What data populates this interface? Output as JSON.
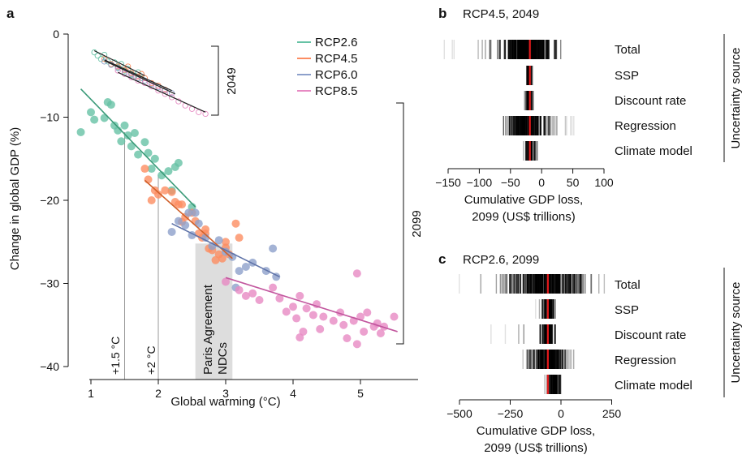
{
  "colors": {
    "RCP2.6": "#66c2a5",
    "RCP4.5": "#fc8d62",
    "RCP6.0": "#8da0cb",
    "RCP8.5": "#e78ac3",
    "median": "#e41a1c",
    "nd_band": "#dddddd"
  },
  "panel_a": {
    "label": "a",
    "xlabel": "Global warming (°C)",
    "ylabel": "Change in global GDP (%)",
    "xticks": [
      "1",
      "2",
      "3",
      "4",
      "5"
    ],
    "yticks": [
      "0",
      "−10",
      "−20",
      "−30",
      "−40"
    ],
    "legend": [
      "RCP2.6",
      "RCP4.5",
      "RCP6.0",
      "RCP8.5"
    ],
    "bracket_2049": "2049",
    "bracket_2099": "2099",
    "vline_15": "+1.5 °C",
    "vline_2": "+2 °C",
    "paris_line1": "Paris Agreement",
    "paris_line2": "NDCs"
  },
  "panel_b": {
    "label": "b",
    "title": "RCP4.5, 2049",
    "xticks": [
      "−150",
      "−100",
      "−50",
      "0",
      "50",
      "100"
    ],
    "xlabel1": "Cumulative GDP loss,",
    "xlabel2": "2099 (US$ trillions)",
    "rows": [
      "Total",
      "SSP",
      "Discount rate",
      "Regression",
      "Climate model"
    ],
    "bracket_label": "Uncertainty source"
  },
  "panel_c": {
    "label": "c",
    "title": "RCP2.6, 2099",
    "xticks": [
      "−500",
      "−250",
      "0",
      "250"
    ],
    "xlabel1": "Cumulative GDP loss,",
    "xlabel2": "2099 (US$ trillions)",
    "rows": [
      "Total",
      "SSP",
      "Discount rate",
      "Regression",
      "Climate model"
    ],
    "bracket_label": "Uncertainty source"
  },
  "chart_data": [
    {
      "type": "scatter",
      "xlabel": "Global warming (°C)",
      "ylabel": "Change in global GDP (%)",
      "xlim": [
        0.8,
        5.6
      ],
      "ylim": [
        -41,
        0
      ],
      "reference_lines_x": [
        1.5,
        2.0
      ],
      "shaded_band_x": [
        2.55,
        3.1
      ],
      "series": [
        {
          "name": "RCP2.6",
          "year": 2049,
          "marker": "open",
          "points": [
            [
              1.05,
              -2.2
            ],
            [
              1.1,
              -2.6
            ],
            [
              1.15,
              -3.0
            ],
            [
              1.2,
              -2.5
            ],
            [
              1.25,
              -3.3
            ],
            [
              1.3,
              -3.7
            ],
            [
              1.35,
              -3.4
            ],
            [
              1.4,
              -4.0
            ],
            [
              1.45,
              -3.6
            ],
            [
              1.5,
              -4.4
            ],
            [
              1.55,
              -4.2
            ],
            [
              1.6,
              -4.8
            ],
            [
              1.65,
              -5.0
            ],
            [
              1.7,
              -4.6
            ],
            [
              1.75,
              -5.3
            ]
          ],
          "fit": [
            [
              1.05,
              -2.0
            ],
            [
              1.8,
              -5.0
            ]
          ]
        },
        {
          "name": "RCP4.5",
          "year": 2049,
          "marker": "open",
          "points": [
            [
              1.2,
              -3.0
            ],
            [
              1.3,
              -3.6
            ],
            [
              1.4,
              -3.9
            ],
            [
              1.5,
              -4.3
            ],
            [
              1.6,
              -4.7
            ],
            [
              1.7,
              -5.1
            ],
            [
              1.8,
              -5.3
            ],
            [
              1.9,
              -5.9
            ],
            [
              2.0,
              -6.2
            ],
            [
              2.1,
              -6.7
            ],
            [
              1.75,
              -4.8
            ],
            [
              1.55,
              -3.9
            ]
          ],
          "fit": [
            [
              1.2,
              -3.1
            ],
            [
              2.2,
              -6.8
            ]
          ]
        },
        {
          "name": "RCP6.0",
          "year": 2049,
          "marker": "open",
          "points": [
            [
              1.2,
              -3.3
            ],
            [
              1.3,
              -3.7
            ],
            [
              1.4,
              -4.1
            ],
            [
              1.5,
              -4.6
            ],
            [
              1.6,
              -4.9
            ],
            [
              1.7,
              -5.3
            ],
            [
              1.8,
              -5.6
            ],
            [
              1.9,
              -6.0
            ],
            [
              2.0,
              -6.4
            ],
            [
              2.1,
              -6.8
            ],
            [
              2.2,
              -7.1
            ]
          ],
          "fit": [
            [
              1.2,
              -3.2
            ],
            [
              2.25,
              -7.2
            ]
          ]
        },
        {
          "name": "RCP8.5",
          "year": 2049,
          "marker": "open",
          "points": [
            [
              1.4,
              -4.4
            ],
            [
              1.5,
              -4.8
            ],
            [
              1.6,
              -5.2
            ],
            [
              1.7,
              -5.6
            ],
            [
              1.8,
              -5.9
            ],
            [
              1.9,
              -6.3
            ],
            [
              2.0,
              -6.8
            ],
            [
              2.1,
              -7.2
            ],
            [
              2.2,
              -7.6
            ],
            [
              2.3,
              -8.1
            ],
            [
              2.4,
              -8.6
            ],
            [
              2.5,
              -9.0
            ],
            [
              2.6,
              -9.4
            ],
            [
              2.7,
              -9.6
            ]
          ],
          "fit": [
            [
              1.4,
              -4.6
            ],
            [
              2.7,
              -9.4
            ]
          ]
        },
        {
          "name": "RCP2.6",
          "year": 2099,
          "marker": "filled",
          "points": [
            [
              0.85,
              -11.8
            ],
            [
              1.0,
              -9.4
            ],
            [
              1.05,
              -10.3
            ],
            [
              1.2,
              -10.1
            ],
            [
              1.25,
              -8.2
            ],
            [
              1.3,
              -8.5
            ],
            [
              1.35,
              -11.0
            ],
            [
              1.4,
              -11.6
            ],
            [
              1.45,
              -12.9
            ],
            [
              1.5,
              -11.0
            ],
            [
              1.55,
              -12.2
            ],
            [
              1.6,
              -13.5
            ],
            [
              1.65,
              -11.9
            ],
            [
              1.7,
              -14.5
            ],
            [
              1.8,
              -13.0
            ],
            [
              1.85,
              -14.3
            ],
            [
              1.9,
              -16.2
            ],
            [
              1.95,
              -15.0
            ],
            [
              2.05,
              -17.0
            ],
            [
              2.15,
              -16.5
            ],
            [
              2.2,
              -18.8
            ],
            [
              2.25,
              -16.0
            ],
            [
              2.3,
              -15.5
            ],
            [
              2.5,
              -20.8
            ]
          ],
          "fit": [
            [
              0.85,
              -6.6
            ],
            [
              2.55,
              -20.8
            ]
          ]
        },
        {
          "name": "RCP4.5",
          "year": 2099,
          "marker": "filled",
          "points": [
            [
              1.8,
              -16.2
            ],
            [
              1.85,
              -17.5
            ],
            [
              1.9,
              -20.0
            ],
            [
              1.95,
              -18.8
            ],
            [
              2.0,
              -19.3
            ],
            [
              2.1,
              -18.8
            ],
            [
              2.2,
              -19.0
            ],
            [
              2.25,
              -20.2
            ],
            [
              2.3,
              -20.5
            ],
            [
              2.35,
              -22.6
            ],
            [
              2.4,
              -22.0
            ],
            [
              2.5,
              -21.5
            ],
            [
              2.55,
              -22.5
            ],
            [
              2.6,
              -24.0
            ],
            [
              2.65,
              -24.5
            ],
            [
              2.7,
              -24.0
            ],
            [
              2.75,
              -25.8
            ],
            [
              2.8,
              -26.0
            ],
            [
              2.85,
              -27.2
            ],
            [
              2.9,
              -26.5
            ],
            [
              2.95,
              -27.0
            ],
            [
              3.0,
              -25.7
            ],
            [
              3.05,
              -26.5
            ],
            [
              2.7,
              -23.5
            ],
            [
              3.15,
              -22.8
            ],
            [
              3.2,
              -24.5
            ],
            [
              2.35,
              -20.5
            ],
            [
              3.0,
              -25.0
            ]
          ],
          "fit": [
            [
              1.8,
              -17.6
            ],
            [
              3.1,
              -27.0
            ]
          ]
        },
        {
          "name": "RCP6.0",
          "year": 2099,
          "marker": "filled",
          "points": [
            [
              2.2,
              -23.8
            ],
            [
              2.3,
              -22.5
            ],
            [
              2.4,
              -23.0
            ],
            [
              2.5,
              -24.2
            ],
            [
              2.55,
              -21.5
            ],
            [
              2.6,
              -22.8
            ],
            [
              2.7,
              -24.5
            ],
            [
              2.8,
              -25.5
            ],
            [
              2.9,
              -24.8
            ],
            [
              3.0,
              -26.2
            ],
            [
              3.1,
              -26.8
            ],
            [
              3.2,
              -28.5
            ],
            [
              3.3,
              -28.0
            ],
            [
              3.4,
              -27.5
            ],
            [
              3.6,
              -28.5
            ],
            [
              3.7,
              -25.8
            ],
            [
              3.75,
              -29.2
            ],
            [
              3.15,
              -30.5
            ],
            [
              2.45,
              -21.5
            ]
          ],
          "fit": [
            [
              2.2,
              -22.8
            ],
            [
              3.8,
              -29.2
            ]
          ]
        },
        {
          "name": "RCP8.5",
          "year": 2099,
          "marker": "filled",
          "points": [
            [
              3.0,
              -29.8
            ],
            [
              3.2,
              -30.8
            ],
            [
              3.3,
              -31.5
            ],
            [
              3.4,
              -31.2
            ],
            [
              3.5,
              -32.0
            ],
            [
              3.7,
              -30.5
            ],
            [
              3.8,
              -31.8
            ],
            [
              3.9,
              -33.4
            ],
            [
              4.0,
              -32.8
            ],
            [
              4.05,
              -34.2
            ],
            [
              4.1,
              -31.5
            ],
            [
              4.2,
              -33.0
            ],
            [
              4.3,
              -33.8
            ],
            [
              4.35,
              -32.5
            ],
            [
              4.4,
              -35.5
            ],
            [
              4.45,
              -34.0
            ],
            [
              4.6,
              -34.5
            ],
            [
              4.7,
              -33.5
            ],
            [
              4.75,
              -35.0
            ],
            [
              4.8,
              -36.6
            ],
            [
              4.9,
              -34.5
            ],
            [
              4.95,
              -37.3
            ],
            [
              5.0,
              -34.0
            ],
            [
              5.05,
              -35.8
            ],
            [
              5.1,
              -33.5
            ],
            [
              5.2,
              -35.2
            ],
            [
              5.25,
              -34.8
            ],
            [
              5.3,
              -36.0
            ],
            [
              5.35,
              -35.2
            ],
            [
              5.5,
              -34.0
            ],
            [
              4.95,
              -28.8
            ],
            [
              4.1,
              -36.5
            ],
            [
              4.15,
              -35.8
            ]
          ],
          "fit": [
            [
              3.0,
              -29.3
            ],
            [
              5.55,
              -35.8
            ]
          ]
        }
      ]
    },
    {
      "type": "heatmap",
      "title": "RCP4.5, 2049",
      "xlabel": "Cumulative GDP loss, 2099 (US$ trillions)",
      "xlim": [
        -150,
        100
      ],
      "rows": [
        "Total",
        "SSP",
        "Discount rate",
        "Regression",
        "Climate model"
      ],
      "ranges": [
        [
          -160,
          40
        ],
        [
          -26,
          -14
        ],
        [
          -30,
          -14
        ],
        [
          -62,
          52
        ],
        [
          -31,
          -7
        ]
      ],
      "core_ranges": [
        [
          -55,
          6
        ],
        [
          -24,
          -17
        ],
        [
          -26,
          -16
        ],
        [
          -53,
          2
        ],
        [
          -27,
          -11
        ]
      ],
      "median": -19
    },
    {
      "type": "heatmap",
      "title": "RCP2.6, 2099",
      "xlabel": "Cumulative GDP loss, 2099 (US$ trillions)",
      "xlim": [
        -500,
        250
      ],
      "rows": [
        "Total",
        "SSP",
        "Discount rate",
        "Regression",
        "Climate model"
      ],
      "ranges": [
        [
          -505,
          225
        ],
        [
          -140,
          -10
        ],
        [
          -420,
          -25
        ],
        [
          -190,
          60
        ],
        [
          -85,
          35
        ]
      ],
      "core_ranges": [
        [
          -220,
          60
        ],
        [
          -85,
          -40
        ],
        [
          -95,
          -45
        ],
        [
          -150,
          20
        ],
        [
          -60,
          -15
        ]
      ],
      "median": -65
    }
  ]
}
